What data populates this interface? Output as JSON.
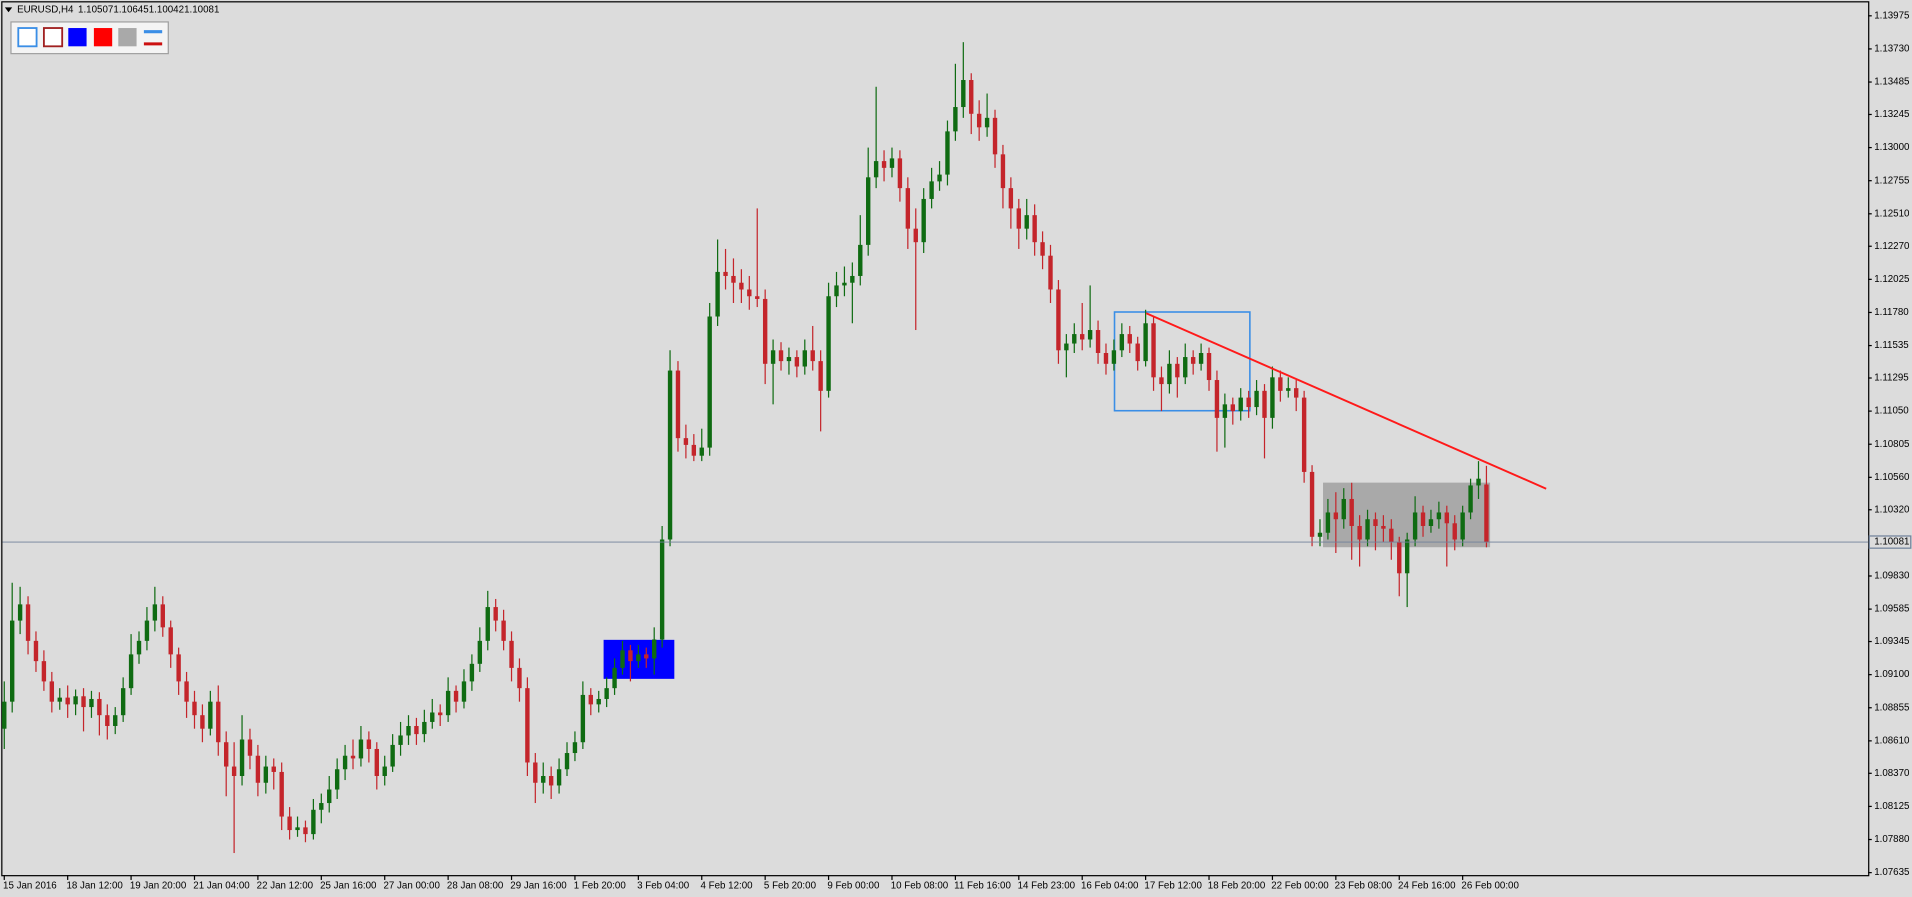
{
  "chart_data": {
    "type": "candlestick",
    "symbol": "EURUSD,H4",
    "up_color": "#0f6b12",
    "down_color": "#c4252b",
    "price_line_color": "#70819a",
    "ylim": [
      1.07617,
      1.14074
    ],
    "yticks": [
      1.13975,
      {
        "value": 1.1373,
        "label": "1.13730"
      },
      1.13485,
      1.13245,
      {
        "value": 1.13,
        "label": "1.13000"
      },
      1.12755,
      {
        "value": 1.1251,
        "label": "1.12510"
      },
      {
        "value": 1.1227,
        "label": "1.12270"
      },
      1.12025,
      {
        "value": 1.1178,
        "label": "1.11780"
      },
      1.11535,
      1.11295,
      {
        "value": 1.1105,
        "label": "1.11050"
      },
      1.10805,
      {
        "value": 1.1056,
        "label": "1.10560"
      },
      {
        "value": 1.1032,
        "label": "1.10320"
      },
      {
        "value": 1.0983,
        "label": "1.09830"
      },
      1.09585,
      1.09345,
      {
        "value": 1.091,
        "label": "1.09100"
      },
      1.08855,
      {
        "value": 1.0861,
        "label": "1.08610"
      },
      {
        "value": 1.0837,
        "label": "1.08370"
      },
      1.08125,
      {
        "value": 1.0788,
        "label": "1.07880"
      },
      1.07635
    ],
    "categories": [
      "15 Jan 2016",
      null,
      null,
      null,
      null,
      null,
      null,
      null,
      "18 Jan 12:00",
      null,
      null,
      null,
      null,
      null,
      null,
      null,
      "19 Jan 20:00",
      null,
      null,
      null,
      null,
      null,
      null,
      null,
      "21 Jan 04:00",
      null,
      null,
      null,
      null,
      null,
      null,
      null,
      "22 Jan 12:00",
      null,
      null,
      null,
      null,
      null,
      null,
      null,
      "25 Jan 16:00",
      null,
      null,
      null,
      null,
      null,
      null,
      null,
      "27 Jan 00:00",
      null,
      null,
      null,
      null,
      null,
      null,
      null,
      "28 Jan 08:00",
      null,
      null,
      null,
      null,
      null,
      null,
      null,
      "29 Jan 16:00",
      null,
      null,
      null,
      null,
      null,
      null,
      null,
      "1 Feb 20:00",
      null,
      null,
      null,
      null,
      null,
      null,
      null,
      "3 Feb 04:00",
      null,
      null,
      null,
      null,
      null,
      null,
      null,
      "4 Feb 12:00",
      null,
      null,
      null,
      null,
      null,
      null,
      null,
      "5 Feb 20:00",
      null,
      null,
      null,
      null,
      null,
      null,
      null,
      "9 Feb 00:00",
      null,
      null,
      null,
      null,
      null,
      null,
      null,
      "10 Feb 08:00",
      null,
      null,
      null,
      null,
      null,
      null,
      null,
      "11 Feb 16:00",
      null,
      null,
      null,
      null,
      null,
      null,
      null,
      "14 Feb 23:00",
      null,
      null,
      null,
      null,
      null,
      null,
      null,
      "16 Feb 04:00",
      null,
      null,
      null,
      null,
      null,
      null,
      null,
      "17 Feb 12:00",
      null,
      null,
      null,
      null,
      null,
      null,
      null,
      "18 Feb 20:00",
      null,
      null,
      null,
      null,
      null,
      null,
      null,
      "22 Feb 00:00",
      null,
      null,
      null,
      null,
      null,
      null,
      null,
      "23 Feb 08:00",
      null,
      null,
      null,
      null,
      null,
      null,
      null,
      "24 Feb 16:00",
      null,
      null,
      null,
      null,
      null,
      null,
      null,
      "26 Feb 00:00",
      null,
      null,
      null
    ],
    "ohlc": [
      [
        1.087,
        1.0905,
        1.0855,
        1.089
      ],
      [
        1.089,
        1.0978,
        1.0882,
        1.095
      ],
      [
        1.095,
        1.0975,
        1.094,
        1.0962
      ],
      [
        1.0962,
        1.0968,
        1.0925,
        1.0935
      ],
      [
        1.0935,
        1.0942,
        1.0912,
        1.092
      ],
      [
        1.092,
        1.0928,
        1.0898,
        1.0905
      ],
      [
        1.0905,
        1.0912,
        1.0882,
        1.089
      ],
      [
        1.089,
        1.09,
        1.0884,
        1.0893
      ],
      [
        1.0893,
        1.0902,
        1.0878,
        1.0888
      ],
      [
        1.0888,
        1.0899,
        1.088,
        1.0894
      ],
      [
        1.0894,
        1.09,
        1.0868,
        1.0886
      ],
      [
        1.0886,
        1.0898,
        1.0878,
        1.0892
      ],
      [
        1.0892,
        1.0897,
        1.0865,
        1.088
      ],
      [
        1.088,
        1.0888,
        1.0862,
        1.0872
      ],
      [
        1.0872,
        1.0886,
        1.0866,
        1.088
      ],
      [
        1.088,
        1.0908,
        1.0875,
        1.09
      ],
      [
        1.09,
        1.094,
        1.0895,
        1.0925
      ],
      [
        1.0925,
        1.0942,
        1.0918,
        1.0935
      ],
      [
        1.0935,
        1.096,
        1.0928,
        1.095
      ],
      [
        1.095,
        1.0975,
        1.0942,
        1.0962
      ],
      [
        1.0962,
        1.0968,
        1.0938,
        1.0945
      ],
      [
        1.0945,
        1.095,
        1.0915,
        1.0925
      ],
      [
        1.0925,
        1.093,
        1.0895,
        1.0905
      ],
      [
        1.0905,
        1.0912,
        1.0878,
        1.089
      ],
      [
        1.089,
        1.0898,
        1.087,
        1.088
      ],
      [
        1.088,
        1.0888,
        1.086,
        1.087
      ],
      [
        1.087,
        1.0898,
        1.0865,
        1.089
      ],
      [
        1.089,
        1.0902,
        1.085,
        1.086
      ],
      [
        1.086,
        1.0868,
        1.082,
        1.0842
      ],
      [
        1.0842,
        1.086,
        1.0778,
        1.0835
      ],
      [
        1.0835,
        1.088,
        1.0828,
        1.0862
      ],
      [
        1.0862,
        1.087,
        1.084,
        1.085
      ],
      [
        1.085,
        1.0858,
        1.082,
        1.083
      ],
      [
        1.083,
        1.085,
        1.0822,
        1.0842
      ],
      [
        1.0842,
        1.0848,
        1.0825,
        1.0838
      ],
      [
        1.0838,
        1.0845,
        1.0795,
        1.0805
      ],
      [
        1.0805,
        1.0812,
        1.0788,
        1.0795
      ],
      [
        1.0795,
        1.0805,
        1.079,
        1.0797
      ],
      [
        1.0797,
        1.0802,
        1.0786,
        1.0792
      ],
      [
        1.0792,
        1.0818,
        1.0788,
        1.081
      ],
      [
        1.081,
        1.0822,
        1.08,
        1.0815
      ],
      [
        1.0815,
        1.0835,
        1.0808,
        1.0825
      ],
      [
        1.0825,
        1.0848,
        1.0818,
        1.084
      ],
      [
        1.084,
        1.0858,
        1.0832,
        1.085
      ],
      [
        1.085,
        1.0862,
        1.084,
        1.0848
      ],
      [
        1.0848,
        1.0872,
        1.0842,
        1.0862
      ],
      [
        1.0862,
        1.0868,
        1.0845,
        1.0855
      ],
      [
        1.0855,
        1.086,
        1.0825,
        1.0835
      ],
      [
        1.0835,
        1.085,
        1.0828,
        1.0842
      ],
      [
        1.0842,
        1.0866,
        1.0838,
        1.0858
      ],
      [
        1.0858,
        1.0875,
        1.085,
        1.0865
      ],
      [
        1.0865,
        1.088,
        1.0858,
        1.0872
      ],
      [
        1.0872,
        1.0878,
        1.0858,
        1.0866
      ],
      [
        1.0866,
        1.0884,
        1.086,
        1.0875
      ],
      [
        1.0875,
        1.0892,
        1.087,
        1.0882
      ],
      [
        1.0882,
        1.0888,
        1.0872,
        1.088
      ],
      [
        1.088,
        1.0908,
        1.0875,
        1.0898
      ],
      [
        1.0898,
        1.0902,
        1.0882,
        1.089
      ],
      [
        1.089,
        1.0914,
        1.0885,
        1.0905
      ],
      [
        1.0905,
        1.0925,
        1.0898,
        1.0918
      ],
      [
        1.0918,
        1.0945,
        1.0912,
        1.0935
      ],
      [
        1.0935,
        1.0972,
        1.0928,
        1.096
      ],
      [
        1.096,
        1.0966,
        1.0942,
        1.095
      ],
      [
        1.095,
        1.0958,
        1.0928,
        1.0935
      ],
      [
        1.0935,
        1.0942,
        1.0905,
        1.0915
      ],
      [
        1.0915,
        1.0922,
        1.089,
        1.09
      ],
      [
        1.09,
        1.0908,
        1.0835,
        1.0845
      ],
      [
        1.0845,
        1.0852,
        1.0815,
        1.083
      ],
      [
        1.083,
        1.0845,
        1.0822,
        1.0835
      ],
      [
        1.0835,
        1.0842,
        1.0818,
        1.0828
      ],
      [
        1.0828,
        1.0848,
        1.0822,
        1.084
      ],
      [
        1.084,
        1.086,
        1.0835,
        1.0852
      ],
      [
        1.0852,
        1.0868,
        1.0846,
        1.086
      ],
      [
        1.086,
        1.0905,
        1.0855,
        1.0895
      ],
      [
        1.0895,
        1.09,
        1.088,
        1.0888
      ],
      [
        1.0888,
        1.0898,
        1.0882,
        1.0892
      ],
      [
        1.0892,
        1.0908,
        1.0886,
        1.09
      ],
      [
        1.09,
        1.0922,
        1.0895,
        1.0915
      ],
      [
        1.0915,
        1.0935,
        1.091,
        1.0928
      ],
      [
        1.0928,
        1.0932,
        1.0905,
        1.092
      ],
      [
        1.092,
        1.0932,
        1.0915,
        1.0925
      ],
      [
        1.0925,
        1.093,
        1.0915,
        1.0922
      ],
      [
        1.0922,
        1.0945,
        1.091,
        1.0936
      ],
      [
        1.0936,
        1.102,
        1.093,
        1.101
      ],
      [
        1.101,
        1.115,
        1.1005,
        1.1135
      ],
      [
        1.1135,
        1.1142,
        1.1075,
        1.1085
      ],
      [
        1.1085,
        1.1095,
        1.107,
        1.108
      ],
      [
        1.108,
        1.1088,
        1.1068,
        1.1072
      ],
      [
        1.1072,
        1.1092,
        1.1068,
        1.1078
      ],
      [
        1.1078,
        1.1185,
        1.1072,
        1.1175
      ],
      [
        1.1175,
        1.1232,
        1.1168,
        1.1208
      ],
      [
        1.1208,
        1.1225,
        1.1195,
        1.1205
      ],
      [
        1.1205,
        1.1218,
        1.1185,
        1.12
      ],
      [
        1.12,
        1.121,
        1.1185,
        1.1195
      ],
      [
        1.1195,
        1.1205,
        1.118,
        1.119
      ],
      [
        1.119,
        1.1255,
        1.1182,
        1.1188
      ],
      [
        1.1188,
        1.1195,
        1.1125,
        1.114
      ],
      [
        1.114,
        1.1158,
        1.111,
        1.115
      ],
      [
        1.115,
        1.1156,
        1.1135,
        1.1142
      ],
      [
        1.1142,
        1.1152,
        1.1132,
        1.1145
      ],
      [
        1.1145,
        1.115,
        1.113,
        1.1138
      ],
      [
        1.1138,
        1.1158,
        1.1132,
        1.115
      ],
      [
        1.115,
        1.1168,
        1.1135,
        1.1142
      ],
      [
        1.1142,
        1.115,
        1.109,
        1.112
      ],
      [
        1.112,
        1.12,
        1.1115,
        1.119
      ],
      [
        1.119,
        1.1208,
        1.1182,
        1.1198
      ],
      [
        1.1198,
        1.1212,
        1.119,
        1.12
      ],
      [
        1.12,
        1.1215,
        1.117,
        1.1205
      ],
      [
        1.1205,
        1.125,
        1.1198,
        1.1228
      ],
      [
        1.1228,
        1.13,
        1.122,
        1.1278
      ],
      [
        1.1278,
        1.1345,
        1.127,
        1.129
      ],
      [
        1.129,
        1.1298,
        1.1275,
        1.1285
      ],
      [
        1.1285,
        1.13,
        1.1278,
        1.1292
      ],
      [
        1.1292,
        1.1298,
        1.126,
        1.127
      ],
      [
        1.127,
        1.1278,
        1.1225,
        1.124
      ],
      [
        1.124,
        1.1255,
        1.1165,
        1.123
      ],
      [
        1.123,
        1.127,
        1.1222,
        1.1262
      ],
      [
        1.1262,
        1.1285,
        1.1255,
        1.1275
      ],
      [
        1.1275,
        1.129,
        1.1268,
        1.128
      ],
      [
        1.128,
        1.132,
        1.1272,
        1.1312
      ],
      [
        1.1312,
        1.1362,
        1.1305,
        1.133
      ],
      [
        1.133,
        1.1378,
        1.1322,
        1.135
      ],
      [
        1.135,
        1.1355,
        1.131,
        1.1325
      ],
      [
        1.1325,
        1.1335,
        1.1305,
        1.1315
      ],
      [
        1.1315,
        1.134,
        1.1308,
        1.1322
      ],
      [
        1.1322,
        1.1328,
        1.1285,
        1.1295
      ],
      [
        1.1295,
        1.1302,
        1.1255,
        1.127
      ],
      [
        1.127,
        1.1278,
        1.124,
        1.1255
      ],
      [
        1.1255,
        1.1262,
        1.1225,
        1.124
      ],
      [
        1.124,
        1.1262,
        1.1232,
        1.125
      ],
      [
        1.125,
        1.1258,
        1.122,
        1.123
      ],
      [
        1.123,
        1.1238,
        1.121,
        1.122
      ],
      [
        1.122,
        1.1228,
        1.1185,
        1.1195
      ],
      [
        1.1195,
        1.1202,
        1.114,
        1.115
      ],
      [
        1.115,
        1.1162,
        1.113,
        1.1155
      ],
      [
        1.1155,
        1.117,
        1.1148,
        1.1162
      ],
      [
        1.1162,
        1.1185,
        1.115,
        1.1158
      ],
      [
        1.1158,
        1.1198,
        1.1152,
        1.1165
      ],
      [
        1.1165,
        1.1172,
        1.114,
        1.1148
      ],
      [
        1.1148,
        1.1155,
        1.1132,
        1.114
      ],
      [
        1.114,
        1.1158,
        1.1135,
        1.115
      ],
      [
        1.115,
        1.117,
        1.1145,
        1.1162
      ],
      [
        1.1162,
        1.1168,
        1.1148,
        1.1155
      ],
      [
        1.1155,
        1.116,
        1.1135,
        1.1142
      ],
      [
        1.1142,
        1.118,
        1.1138,
        1.117
      ],
      [
        1.117,
        1.1175,
        1.112,
        1.113
      ],
      [
        1.113,
        1.1138,
        1.1105,
        1.1125
      ],
      [
        1.1125,
        1.115,
        1.1118,
        1.114
      ],
      [
        1.114,
        1.1145,
        1.1115,
        1.113
      ],
      [
        1.113,
        1.1155,
        1.1125,
        1.1145
      ],
      [
        1.1145,
        1.115,
        1.1132,
        1.114
      ],
      [
        1.114,
        1.1155,
        1.1135,
        1.1148
      ],
      [
        1.1148,
        1.1152,
        1.112,
        1.1128
      ],
      [
        1.1128,
        1.1135,
        1.1075,
        1.11
      ],
      [
        1.11,
        1.1118,
        1.1078,
        1.111
      ],
      [
        1.111,
        1.1115,
        1.1095,
        1.1105
      ],
      [
        1.1105,
        1.1122,
        1.1098,
        1.1115
      ],
      [
        1.1115,
        1.112,
        1.11,
        1.1108
      ],
      [
        1.1108,
        1.1128,
        1.1102,
        1.112
      ],
      [
        1.112,
        1.1125,
        1.107,
        1.11
      ],
      [
        1.11,
        1.1138,
        1.1092,
        1.113
      ],
      [
        1.113,
        1.1135,
        1.1112,
        1.112
      ],
      [
        1.112,
        1.113,
        1.1115,
        1.1122
      ],
      [
        1.1122,
        1.1128,
        1.1105,
        1.1115
      ],
      [
        1.1115,
        1.112,
        1.1052,
        1.106
      ],
      [
        1.106,
        1.1065,
        1.1005,
        1.1012
      ],
      [
        1.1012,
        1.1025,
        1.1005,
        1.1015
      ],
      [
        1.1015,
        1.104,
        1.101,
        1.103
      ],
      [
        1.103,
        1.1045,
        1.1,
        1.1025
      ],
      [
        1.1025,
        1.1048,
        1.1018,
        1.104
      ],
      [
        1.104,
        1.1052,
        1.0995,
        1.102
      ],
      [
        1.102,
        1.1028,
        1.099,
        1.101
      ],
      [
        1.101,
        1.1032,
        1.1005,
        1.1025
      ],
      [
        1.1025,
        1.103,
        1.1002,
        1.102
      ],
      [
        1.102,
        1.1028,
        1.1008,
        1.1018
      ],
      [
        1.1018,
        1.1025,
        1.0995,
        1.1008
      ],
      [
        1.1008,
        1.1012,
        1.0968,
        1.0985
      ],
      [
        1.0985,
        1.1015,
        1.096,
        1.101
      ],
      [
        1.101,
        1.1042,
        1.1005,
        1.103
      ],
      [
        1.103,
        1.1035,
        1.1012,
        1.102
      ],
      [
        1.102,
        1.1032,
        1.1015,
        1.1025
      ],
      [
        1.1025,
        1.1038,
        1.1018,
        1.103
      ],
      [
        1.103,
        1.1035,
        1.099,
        1.1022
      ],
      [
        1.1022,
        1.1028,
        1.1002,
        1.101
      ],
      [
        1.101,
        1.1035,
        1.1005,
        1.103
      ],
      [
        1.103,
        1.1055,
        1.1025,
        1.105
      ],
      [
        1.105,
        1.1068,
        1.104,
        1.1055
      ],
      [
        1.10507,
        1.10645,
        1.10042,
        1.10081
      ]
    ]
  }
}
